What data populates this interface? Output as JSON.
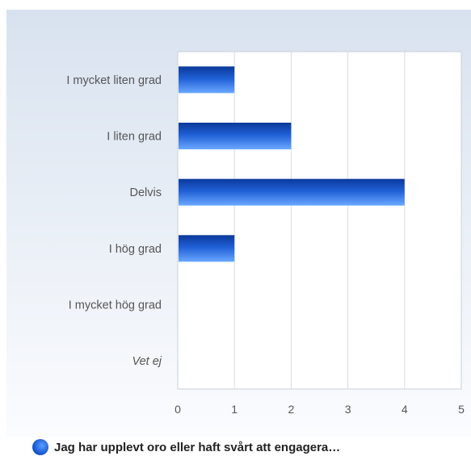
{
  "chart_data": {
    "type": "bar",
    "orientation": "horizontal",
    "categories": [
      "I mycket liten grad",
      "I liten grad",
      "Delvis",
      "I hög grad",
      "I mycket hög grad",
      "Vet ej"
    ],
    "series": [
      {
        "name": "Jag har upplevt oro eller haft svårt att engagera…",
        "values": [
          1,
          2,
          4,
          1,
          0,
          0
        ]
      }
    ],
    "xlim": [
      0,
      5
    ],
    "x_ticks": [
      "0",
      "1",
      "2",
      "3",
      "4",
      "5"
    ],
    "grid": true,
    "legend_position": "bottom-left",
    "colors": {
      "bar": "#1f5fd6",
      "bar_light": "#6aa8ff",
      "bar_dark": "#0b3a9a",
      "grid": "#d6dde6",
      "bg_top": "#d9e3f0"
    }
  }
}
